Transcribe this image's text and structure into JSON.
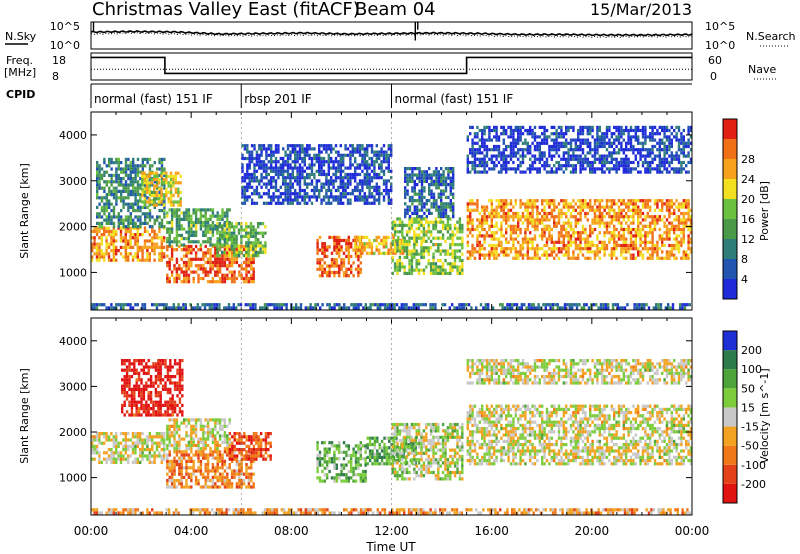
{
  "header": {
    "title": "Christmas Valley East (fitACF)",
    "beam": "Beam 04",
    "date": "15/Mar/2013"
  },
  "left_labels": {
    "nsky": "N.Sky",
    "freq_line1": "Freq.",
    "freq_line2": "[MHz]",
    "cpid": "CPID"
  },
  "right_labels": {
    "nsearch": "N.Search",
    "nave": "Nave"
  },
  "chart_data": [
    {
      "type": "line",
      "name": "noise",
      "y_left_ticks": [
        "10^5",
        "10^0"
      ],
      "y_right_ticks": [
        "10^5",
        "10^0"
      ],
      "x": [
        "00:00",
        "02:00",
        "02:55",
        "04:00",
        "06:00",
        "08:00",
        "10:00",
        "12:00",
        "14:00",
        "15:00",
        "16:00",
        "18:00",
        "20:00",
        "22:00",
        "24:00"
      ],
      "series": [
        {
          "name": "N.Sky",
          "values": [
            3.0,
            3.1,
            3.0,
            2.6,
            2.7,
            2.8,
            2.6,
            2.7,
            2.8,
            2.7,
            2.5,
            2.5,
            2.4,
            2.4,
            2.5
          ]
        },
        {
          "name": "N.Search",
          "values": [
            2.6,
            2.8,
            2.6,
            2.3,
            2.3,
            2.4,
            2.3,
            2.4,
            2.5,
            2.3,
            2.1,
            2.1,
            2.0,
            2.1,
            2.1
          ]
        }
      ]
    },
    {
      "type": "line",
      "name": "freq-nave",
      "y_left_ticks": [
        "18",
        "8"
      ],
      "y_right_ticks": [
        "60",
        "0"
      ],
      "left_ylim": [
        8,
        18
      ],
      "right_ylim": [
        0,
        60
      ],
      "series": [
        {
          "name": "Freq.",
          "x": [
            0,
            2.95,
            2.95,
            15.0,
            15.0,
            24
          ],
          "values": [
            17.3,
            17.3,
            9.3,
            9.3,
            17.3,
            17.3
          ]
        },
        {
          "name": "Nave",
          "x": [
            0,
            24
          ],
          "values": [
            20,
            20
          ]
        }
      ]
    },
    {
      "type": "table",
      "name": "cpid",
      "segments": [
        {
          "start": 0.0,
          "end": 6.0,
          "label": "normal (fast) 151 IF"
        },
        {
          "start": 6.0,
          "end": 12.0,
          "label": "rbsp 201 IF"
        },
        {
          "start": 12.0,
          "end": 24.0,
          "label": "normal (fast) 151 IF"
        }
      ]
    },
    {
      "type": "heatmap",
      "name": "power",
      "ylabel": "Slant Range [km]",
      "yticks": [
        1000,
        2000,
        3000,
        4000
      ],
      "ylim": [
        180,
        4500
      ],
      "xlim": [
        0,
        24
      ],
      "colorbar_label": "Power [dB]",
      "colorbar_ticks": [
        "4",
        "8",
        "12",
        "16",
        "20",
        "24",
        "28"
      ],
      "colorbar_colors": [
        "#1f2bd8",
        "#2255b0",
        "#2e7d7a",
        "#4a9a4a",
        "#6cc040",
        "#f2e020",
        "#f6a21c",
        "#f07018",
        "#e02012"
      ],
      "regions": [
        {
          "t0": 0.0,
          "t1": 2.95,
          "r0": 1300,
          "r1": 2000,
          "level": 0.75
        },
        {
          "t0": 0.2,
          "t1": 2.95,
          "r0": 2000,
          "r1": 3500,
          "level": 0.3
        },
        {
          "t0": 2.0,
          "t1": 3.6,
          "r0": 2500,
          "r1": 3200,
          "level": 0.6
        },
        {
          "t0": 3.0,
          "t1": 6.5,
          "r0": 800,
          "r1": 1600,
          "level": 0.85
        },
        {
          "t0": 3.0,
          "t1": 5.5,
          "r0": 1600,
          "r1": 2400,
          "level": 0.4
        },
        {
          "t0": 5.0,
          "t1": 7.0,
          "r0": 1400,
          "r1": 2100,
          "level": 0.45
        },
        {
          "t0": 6.0,
          "t1": 12.0,
          "r0": 2500,
          "r1": 3800,
          "level": 0.12
        },
        {
          "t0": 9.0,
          "t1": 10.8,
          "r0": 900,
          "r1": 1800,
          "level": 0.85
        },
        {
          "t0": 10.5,
          "t1": 12.5,
          "r0": 1400,
          "r1": 1800,
          "level": 0.7
        },
        {
          "t0": 12.0,
          "t1": 14.8,
          "r0": 1000,
          "r1": 2200,
          "level": 0.5
        },
        {
          "t0": 12.5,
          "t1": 14.5,
          "r0": 2200,
          "r1": 3300,
          "level": 0.2
        },
        {
          "t0": 15.0,
          "t1": 24.0,
          "r0": 1300,
          "r1": 2600,
          "level": 0.75
        },
        {
          "t0": 15.0,
          "t1": 24.0,
          "r0": 3200,
          "r1": 4200,
          "level": 0.1
        },
        {
          "t0": 0.0,
          "t1": 24.0,
          "r0": 200,
          "r1": 330,
          "level": 0.2
        }
      ]
    },
    {
      "type": "heatmap",
      "name": "velocity",
      "xlabel": "Time UT",
      "ylabel": "Slant Range [km]",
      "yticks": [
        1000,
        2000,
        3000,
        4000
      ],
      "ylim": [
        180,
        4500
      ],
      "xlim": [
        0,
        24
      ],
      "xticks": [
        "00:00",
        "04:00",
        "08:00",
        "12:00",
        "16:00",
        "20:00",
        "00:00"
      ],
      "colorbar_label": "Velocity [m s^-1]",
      "colorbar_ticks": [
        "200",
        "100",
        "50",
        "15",
        "-15",
        "-50",
        "-100",
        "-200"
      ],
      "colorbar_colors": [
        "#1e2fd6",
        "#2d7a4a",
        "#4ea43a",
        "#7ccc3c",
        "#c8c8c8",
        "#f2a220",
        "#f07818",
        "#e4401a",
        "#e01212"
      ],
      "regions": [
        {
          "t0": 0.0,
          "t1": 2.95,
          "r0": 1300,
          "r1": 2000,
          "level": 0.5
        },
        {
          "t0": 1.2,
          "t1": 3.6,
          "r0": 2400,
          "r1": 3600,
          "level": 0.05
        },
        {
          "t0": 3.0,
          "t1": 5.5,
          "r0": 1600,
          "r1": 2300,
          "level": 0.5
        },
        {
          "t0": 3.0,
          "t1": 6.5,
          "r0": 800,
          "r1": 1600,
          "level": 0.3
        },
        {
          "t0": 5.5,
          "t1": 7.2,
          "r0": 1400,
          "r1": 2000,
          "level": 0.18
        },
        {
          "t0": 9.0,
          "t1": 11.0,
          "r0": 900,
          "r1": 1800,
          "level": 0.68
        },
        {
          "t0": 11.0,
          "t1": 13.0,
          "r0": 1300,
          "r1": 1900,
          "level": 0.7
        },
        {
          "t0": 12.0,
          "t1": 14.8,
          "r0": 1000,
          "r1": 2200,
          "level": 0.55
        },
        {
          "t0": 15.0,
          "t1": 24.0,
          "r0": 1300,
          "r1": 2600,
          "level": 0.5
        },
        {
          "t0": 15.0,
          "t1": 24.0,
          "r0": 3100,
          "r1": 3600,
          "level": 0.5
        },
        {
          "t0": 0.0,
          "t1": 24.0,
          "r0": 200,
          "r1": 330,
          "level": 0.35
        }
      ]
    }
  ]
}
